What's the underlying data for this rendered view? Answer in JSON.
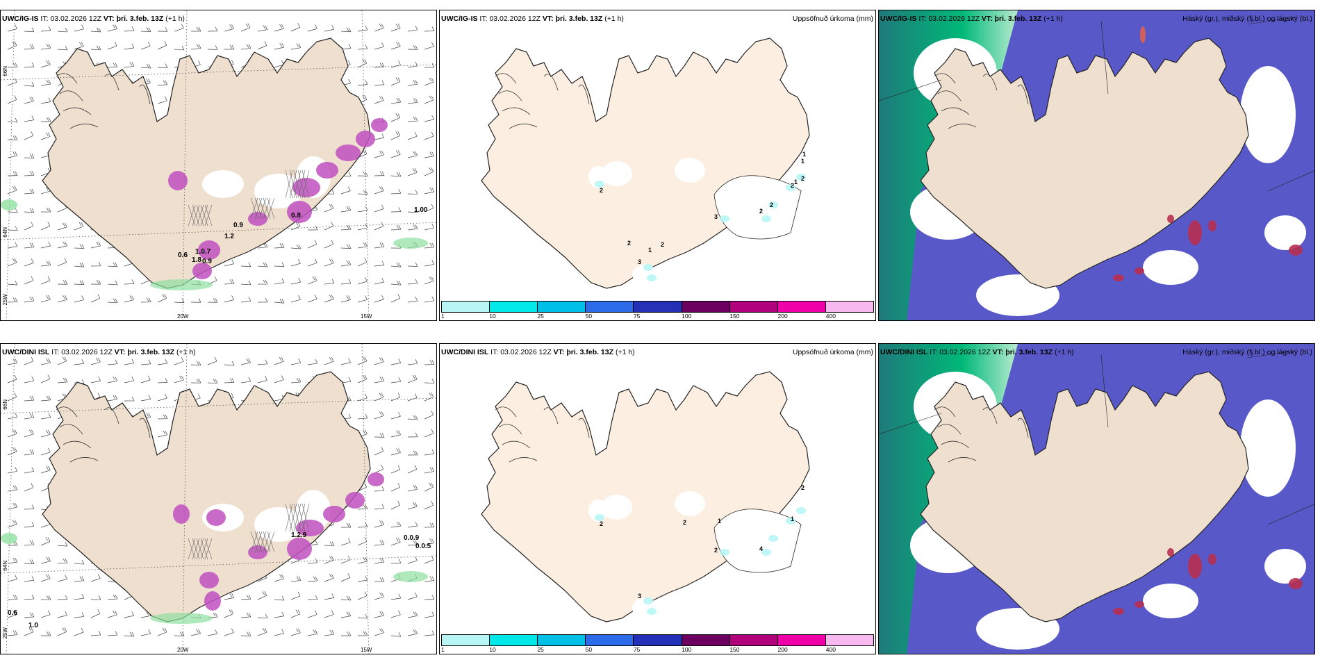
{
  "rows": [
    {
      "model": "UWC/IG-IS",
      "it_label": "IT:",
      "it_value": "03.02.2026 12Z",
      "vt_label": "VT:",
      "vt_value": "þri. 3.feb. 13Z",
      "lead": "(+1 h)",
      "wind_labels": [
        "0.9",
        "1.2",
        "1.0.7",
        "0.6",
        "1.8",
        "0.9",
        "1.00",
        "0.8"
      ],
      "precip_labels": [
        "2",
        "2",
        "2",
        "3",
        "1",
        "3",
        "2",
        "2",
        "2",
        "1",
        "1",
        "1",
        "2"
      ]
    },
    {
      "model": "UWC/DINI ISL",
      "it_label": "IT:",
      "it_value": "03.02.2026 12Z",
      "vt_label": "VT:",
      "vt_value": "þri. 3.feb. 13Z",
      "lead": "(+1 h)",
      "wind_labels": [
        "0.6",
        "1.0",
        "0.0.9",
        "0.0.5",
        "1.2.9"
      ],
      "precip_labels": [
        "2",
        "2",
        "3",
        "2",
        "1",
        "4",
        "2",
        "1"
      ]
    }
  ],
  "precip_title": "Uppsöfnuð úrkoma (mm)",
  "cloud_title": "Háský (gr.), miðský (fj.bl.) og lágský (bl.)",
  "colorbar": {
    "ticks": [
      "1",
      "10",
      "25",
      "50",
      "75",
      "100",
      "150",
      "200",
      "400"
    ],
    "colors": [
      "#b8f6f6",
      "#00e8e8",
      "#00c0e8",
      "#2c6ce8",
      "#2430b8",
      "#6c0060",
      "#b0007c",
      "#f000a8",
      "#f8b8f0"
    ]
  },
  "axis_labels": {
    "lat_top": "66N",
    "lat_mid": "64N",
    "lon_left": "25W",
    "lon_mid": "20W",
    "lon_right": "15W"
  },
  "colors": {
    "land": "#efdfcf",
    "land_precip": "#fcefe1",
    "cloud_high": "#00b878",
    "cloud_mid": "#5858c8",
    "cloud_low": "#b83050",
    "convective": "#c050c0"
  }
}
